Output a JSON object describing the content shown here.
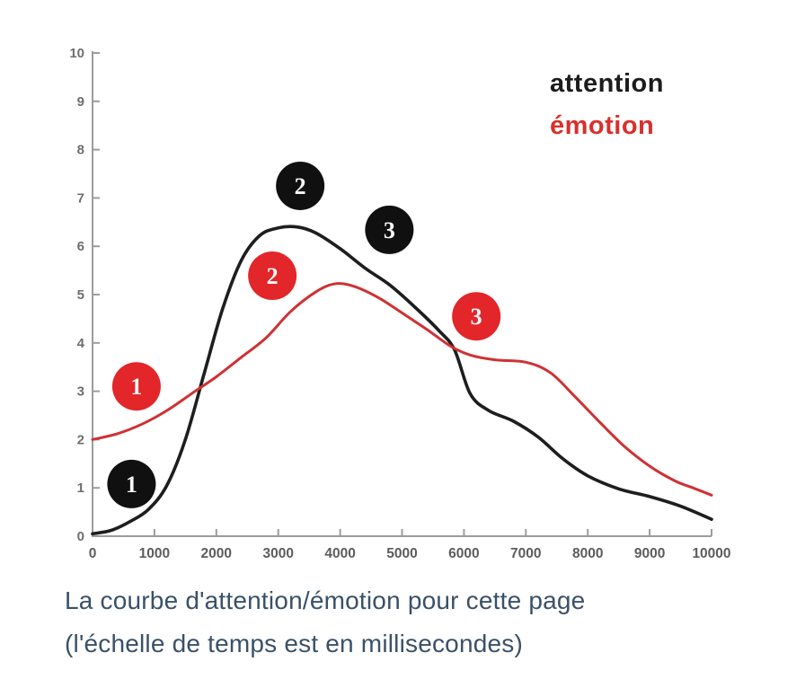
{
  "chart_data": {
    "type": "line",
    "title": "",
    "xlabel": "",
    "ylabel": "",
    "x_unit": "milliseconds",
    "xlim": [
      0,
      10000
    ],
    "ylim": [
      0,
      10
    ],
    "x_ticks": [
      0,
      1000,
      2000,
      3000,
      4000,
      5000,
      6000,
      7000,
      8000,
      9000,
      10000
    ],
    "y_ticks": [
      0,
      1,
      2,
      3,
      4,
      5,
      6,
      7,
      8,
      9,
      10
    ],
    "grid": false,
    "axis_color": "#9c9c9c",
    "legend": {
      "position": "top-right",
      "entries": [
        {
          "name": "attention",
          "color": "#1c1c1c"
        },
        {
          "name": "émotion",
          "color": "#d7312e"
        }
      ]
    },
    "series": [
      {
        "name": "attention",
        "color": "#1e1e1e",
        "stroke_width": 3.6,
        "points": [
          [
            0,
            0.05
          ],
          [
            300,
            0.12
          ],
          [
            600,
            0.3
          ],
          [
            900,
            0.55
          ],
          [
            1200,
            1.05
          ],
          [
            1500,
            2.0
          ],
          [
            1800,
            3.35
          ],
          [
            2100,
            4.7
          ],
          [
            2400,
            5.7
          ],
          [
            2700,
            6.22
          ],
          [
            3000,
            6.38
          ],
          [
            3300,
            6.4
          ],
          [
            3600,
            6.28
          ],
          [
            4000,
            5.95
          ],
          [
            4400,
            5.55
          ],
          [
            4800,
            5.2
          ],
          [
            5200,
            4.75
          ],
          [
            5600,
            4.25
          ],
          [
            5850,
            3.85
          ],
          [
            6100,
            2.95
          ],
          [
            6400,
            2.6
          ],
          [
            6800,
            2.38
          ],
          [
            7200,
            2.05
          ],
          [
            7600,
            1.6
          ],
          [
            8000,
            1.25
          ],
          [
            8500,
            0.98
          ],
          [
            9000,
            0.82
          ],
          [
            9500,
            0.62
          ],
          [
            10000,
            0.35
          ]
        ]
      },
      {
        "name": "émotion",
        "color": "#cf3134",
        "stroke_width": 3.0,
        "points": [
          [
            0,
            2.0
          ],
          [
            400,
            2.12
          ],
          [
            800,
            2.32
          ],
          [
            1200,
            2.6
          ],
          [
            1600,
            2.95
          ],
          [
            2000,
            3.3
          ],
          [
            2400,
            3.7
          ],
          [
            2800,
            4.1
          ],
          [
            3200,
            4.65
          ],
          [
            3600,
            5.05
          ],
          [
            3900,
            5.22
          ],
          [
            4200,
            5.18
          ],
          [
            4600,
            4.95
          ],
          [
            5000,
            4.62
          ],
          [
            5400,
            4.28
          ],
          [
            5800,
            3.92
          ],
          [
            6100,
            3.75
          ],
          [
            6500,
            3.65
          ],
          [
            7000,
            3.6
          ],
          [
            7400,
            3.38
          ],
          [
            7800,
            2.88
          ],
          [
            8200,
            2.35
          ],
          [
            8600,
            1.85
          ],
          [
            9000,
            1.45
          ],
          [
            9400,
            1.15
          ],
          [
            9700,
            1.0
          ],
          [
            10000,
            0.85
          ]
        ]
      }
    ],
    "markers": [
      {
        "series": "attention",
        "label": "1",
        "x": 630,
        "y": 1.08,
        "color": "#101010"
      },
      {
        "series": "émotion",
        "label": "1",
        "x": 710,
        "y": 3.1,
        "color": "#e22629"
      },
      {
        "series": "émotion",
        "label": "2",
        "x": 2905,
        "y": 5.39,
        "color": "#e22629"
      },
      {
        "series": "attention",
        "label": "2",
        "x": 3355,
        "y": 7.25,
        "color": "#101010"
      },
      {
        "series": "attention",
        "label": "3",
        "x": 4795,
        "y": 6.34,
        "color": "#101010"
      },
      {
        "series": "émotion",
        "label": "3",
        "x": 6200,
        "y": 4.55,
        "color": "#e22629"
      }
    ]
  },
  "caption": {
    "line1": "La courbe d'attention/émotion pour cette page",
    "line2": "(l'échelle de temps est en millisecondes)"
  }
}
